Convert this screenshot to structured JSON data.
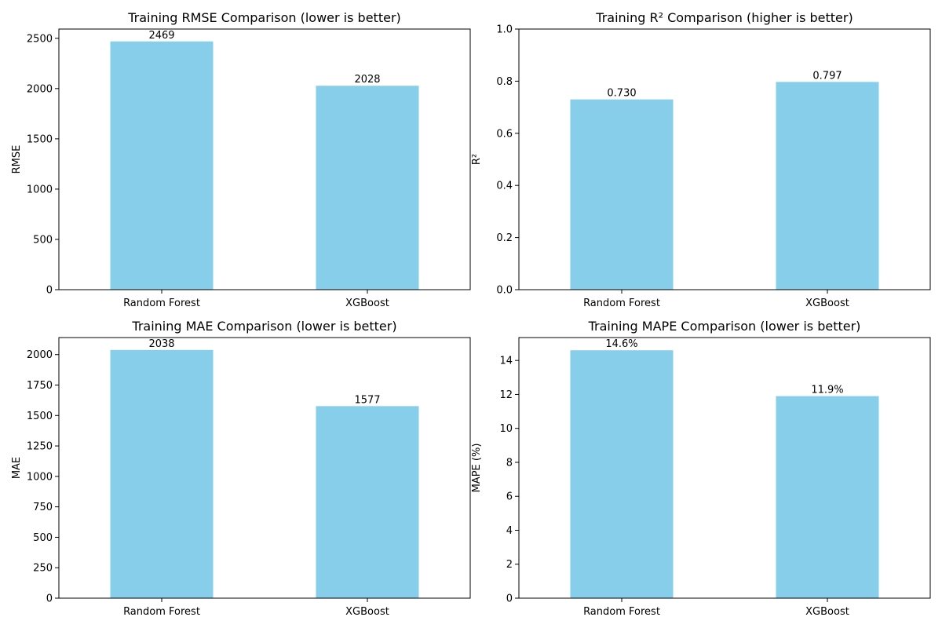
{
  "chart_data": [
    {
      "type": "bar",
      "title": "Training RMSE Comparison (lower is better)",
      "xlabel": "",
      "ylabel": "RMSE",
      "categories": [
        "Random Forest",
        "XGBoost"
      ],
      "values": [
        2469,
        2028
      ],
      "value_labels": [
        "2469",
        "2028"
      ],
      "ylim": [
        0,
        2592
      ],
      "yticks": [
        0,
        500,
        1000,
        1500,
        2000,
        2500
      ],
      "ytick_labels": [
        "0",
        "500",
        "1000",
        "1500",
        "2000",
        "2500"
      ],
      "bar_color": "#87CEEB",
      "grid": false
    },
    {
      "type": "bar",
      "title": "Training R² Comparison (higher is better)",
      "xlabel": "",
      "ylabel": "R²",
      "categories": [
        "Random Forest",
        "XGBoost"
      ],
      "values": [
        0.73,
        0.797
      ],
      "value_labels": [
        "0.730",
        "0.797"
      ],
      "ylim": [
        0,
        1.0
      ],
      "yticks": [
        0.0,
        0.2,
        0.4,
        0.6,
        0.8,
        1.0
      ],
      "ytick_labels": [
        "0.0",
        "0.2",
        "0.4",
        "0.6",
        "0.8",
        "1.0"
      ],
      "bar_color": "#87CEEB",
      "grid": false
    },
    {
      "type": "bar",
      "title": "Training MAE Comparison (lower is better)",
      "xlabel": "",
      "ylabel": "MAE",
      "categories": [
        "Random Forest",
        "XGBoost"
      ],
      "values": [
        2038,
        1577
      ],
      "value_labels": [
        "2038",
        "1577"
      ],
      "ylim": [
        0,
        2140
      ],
      "yticks": [
        0,
        250,
        500,
        750,
        1000,
        1250,
        1500,
        1750,
        2000
      ],
      "ytick_labels": [
        "0",
        "250",
        "500",
        "750",
        "1000",
        "1250",
        "1500",
        "1750",
        "2000"
      ],
      "bar_color": "#87CEEB",
      "grid": false
    },
    {
      "type": "bar",
      "title": "Training MAPE Comparison (lower is better)",
      "xlabel": "",
      "ylabel": "MAPE (%)",
      "categories": [
        "Random Forest",
        "XGBoost"
      ],
      "values": [
        14.6,
        11.9
      ],
      "value_labels": [
        "14.6%",
        "11.9%"
      ],
      "ylim": [
        0,
        15.35
      ],
      "yticks": [
        0,
        2,
        4,
        6,
        8,
        10,
        12,
        14
      ],
      "ytick_labels": [
        "0",
        "2",
        "4",
        "6",
        "8",
        "10",
        "12",
        "14"
      ],
      "bar_color": "#87CEEB",
      "grid": false
    }
  ]
}
